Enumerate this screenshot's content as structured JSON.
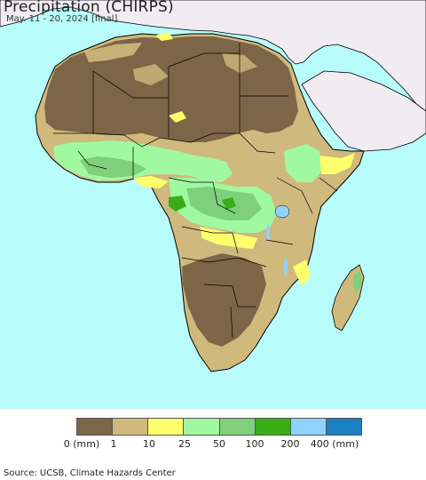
{
  "header": {
    "title": "Precipitation (CHIRPS)",
    "subtitle": "May. 11 - 20, 2024 [final]"
  },
  "map": {
    "ocean_color": "#b8fbfb",
    "no_data_land_color": "#f0ecf2",
    "border_color": "#000000"
  },
  "legend": {
    "colors": [
      "#7d6647",
      "#cfb97c",
      "#ffff6e",
      "#a0f9a0",
      "#7ed07a",
      "#39ae18",
      "#8fd3ff",
      "#1b7fc0"
    ],
    "labels": [
      "0 (mm)",
      "1",
      "10",
      "25",
      "50",
      "100",
      "200",
      "400 (mm)"
    ]
  },
  "footer": {
    "source": "Source: UCSB, Climate Hazards Center"
  }
}
